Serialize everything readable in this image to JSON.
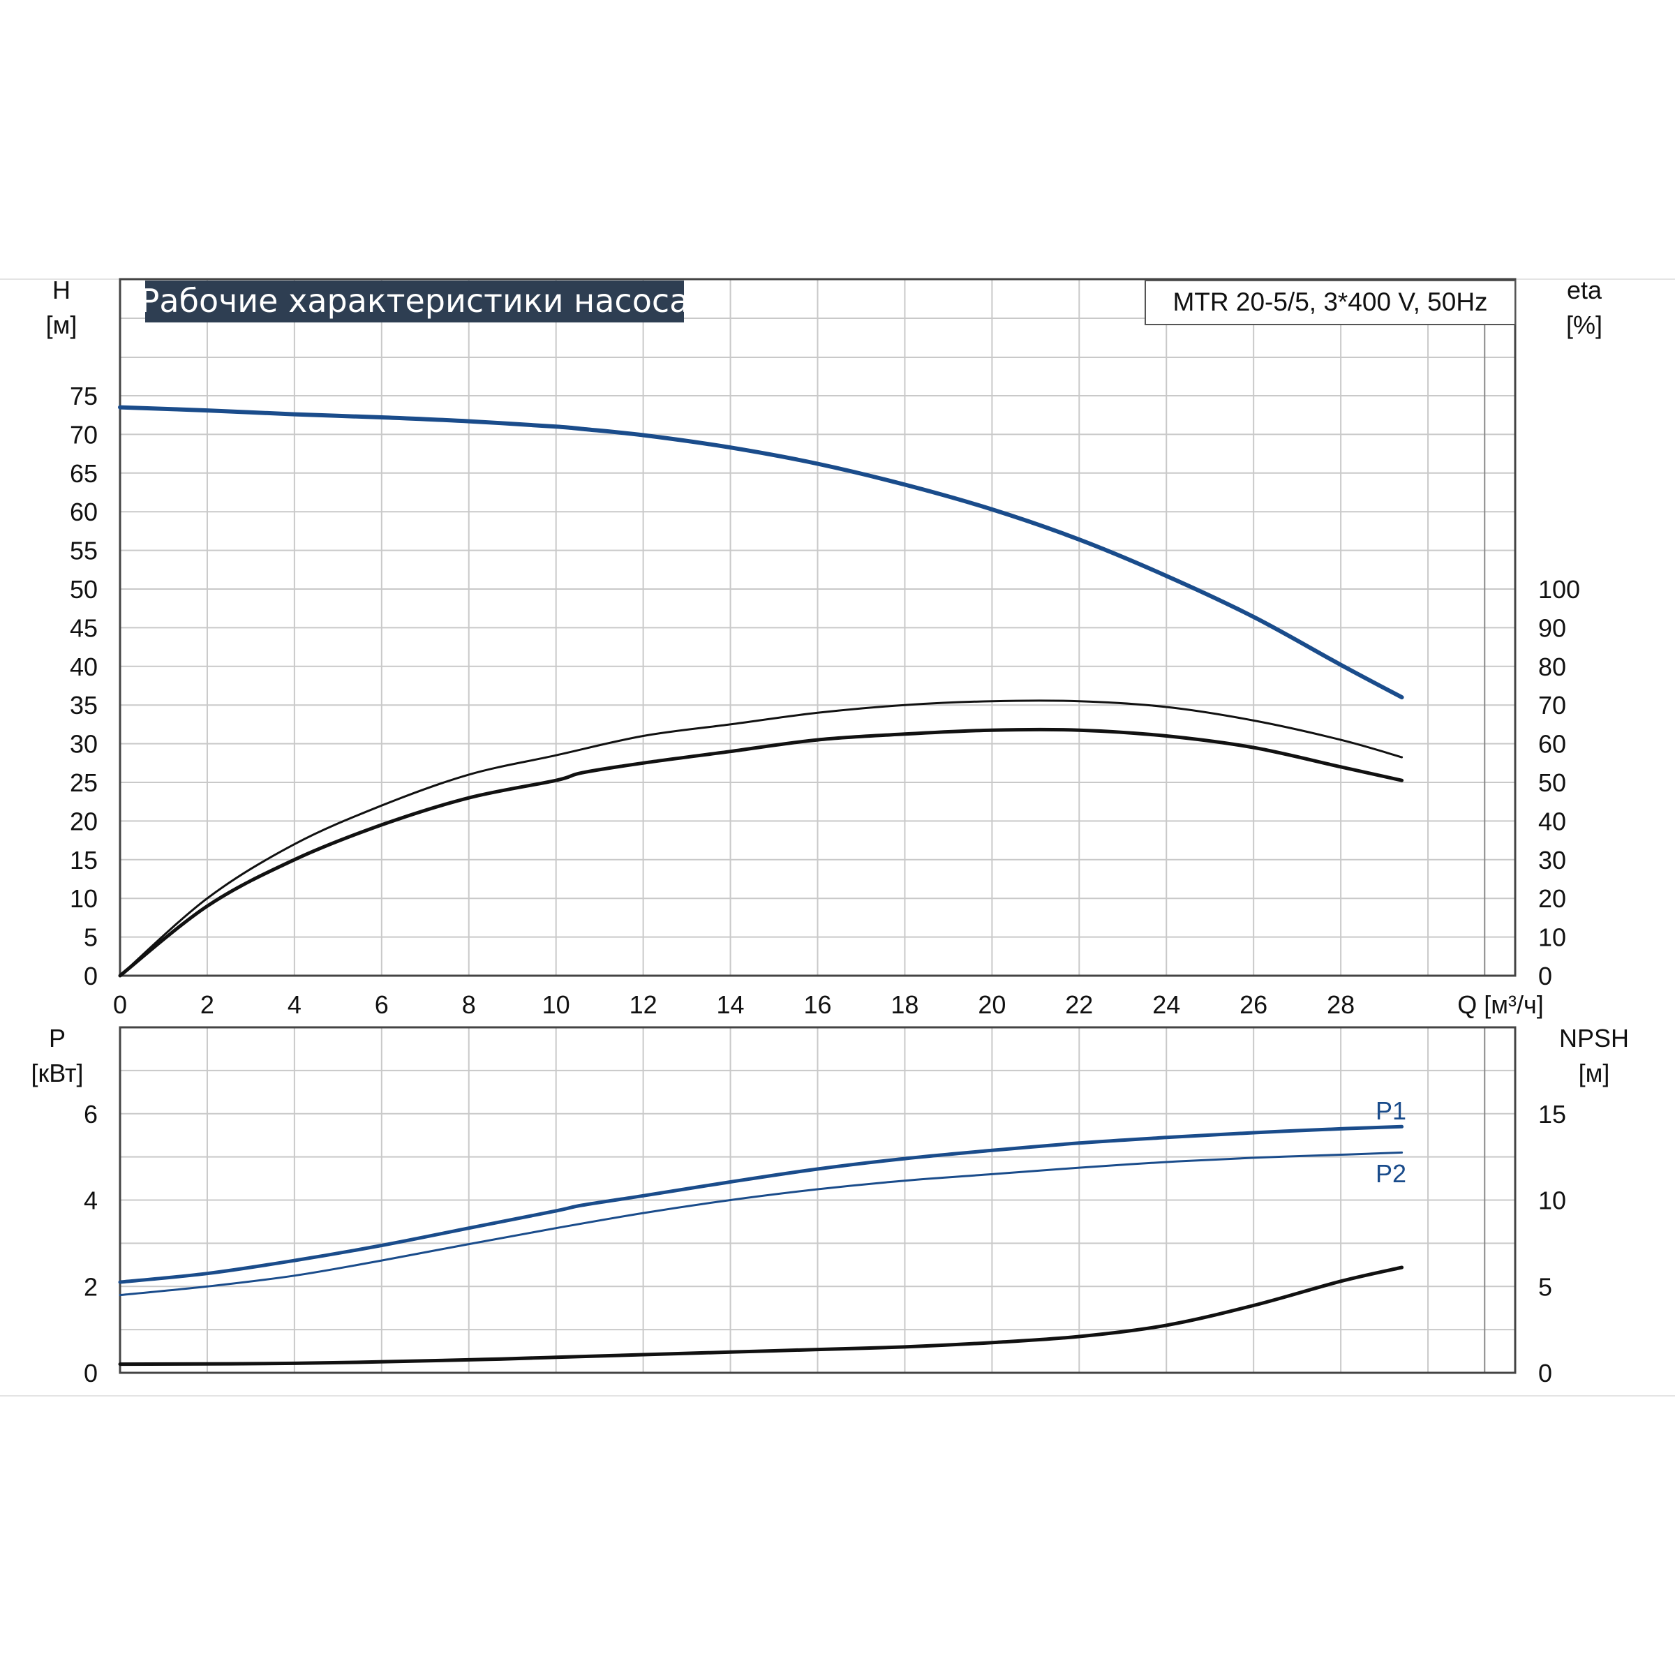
{
  "title": "Рабочие характеристики насоса",
  "model": "MTR 20-5/5, 3*400 V, 50Hz",
  "colors": {
    "blue": "#1a4c8b",
    "black": "#111111",
    "grid": "#c9c9c9",
    "title_bg": "#2e3e52"
  },
  "chart_data": [
    {
      "type": "line",
      "name": "head-efficiency",
      "xlabel": "Q [м³/ч]",
      "xlim": [
        0,
        32
      ],
      "x_ticks": [
        "0",
        "2",
        "4",
        "6",
        "8",
        "10",
        "12",
        "14",
        "16",
        "18",
        "20",
        "22",
        "24",
        "26",
        "28"
      ],
      "ylabel": "H",
      "ylabel_unit": "[м]",
      "ylim": [
        0,
        75
      ],
      "y_ticks": [
        "0",
        "5",
        "10",
        "15",
        "20",
        "25",
        "30",
        "35",
        "40",
        "45",
        "50",
        "55",
        "60",
        "65",
        "70",
        "75"
      ],
      "y2label": "eta",
      "y2label_unit": "[%]",
      "y2lim": [
        0,
        100
      ],
      "y2_ticks": [
        "0",
        "10",
        "20",
        "30",
        "40",
        "50",
        "60",
        "70",
        "80",
        "90",
        "100"
      ],
      "grid": true,
      "series": [
        {
          "axis": "left",
          "color": "#1a4c8b",
          "x": [
            0,
            2,
            4,
            6,
            8,
            10,
            10.6,
            12,
            14,
            16,
            18,
            20,
            22,
            24,
            26,
            28,
            29.4
          ],
          "y": [
            73.5,
            73.1,
            72.6,
            72.2,
            71.7,
            71.0,
            70.7,
            69.9,
            68.3,
            66.2,
            63.5,
            60.3,
            56.4,
            51.7,
            46.4,
            40.2,
            36.0
          ]
        },
        {
          "axis": "right",
          "color": "#111111",
          "x": [
            0,
            2,
            4,
            6,
            8,
            10,
            12,
            14,
            16,
            18,
            20,
            22,
            24,
            26,
            28,
            29.4
          ],
          "y": [
            0,
            20,
            34,
            44,
            52,
            57,
            62,
            65,
            68,
            70,
            71,
            71,
            69.5,
            66,
            61,
            56.5
          ]
        },
        {
          "axis": "right",
          "color": "#111111",
          "x": [
            0,
            2,
            4,
            6,
            8,
            10,
            10.6,
            12,
            14,
            16,
            18,
            20,
            22,
            24,
            26,
            28,
            29.4
          ],
          "y": [
            0,
            18,
            30,
            39,
            46,
            50.5,
            52.5,
            55,
            58,
            61,
            62.5,
            63.5,
            63.5,
            62,
            59,
            54,
            50.5
          ]
        }
      ]
    },
    {
      "type": "line",
      "name": "power-npsh",
      "xlim": [
        0,
        32
      ],
      "ylabel": "P",
      "ylabel_unit": "[кВт]",
      "ylim": [
        0,
        8
      ],
      "y_ticks": [
        "0",
        "2",
        "4",
        "6"
      ],
      "y2label": "NPSH",
      "y2label_unit": "[м]",
      "y2lim": [
        0,
        20
      ],
      "y2_ticks": [
        "0",
        "5",
        "10",
        "15"
      ],
      "grid": true,
      "series": [
        {
          "name": "P1",
          "axis": "left",
          "color": "#1a4c8b",
          "x": [
            0,
            2,
            4,
            6,
            8,
            10,
            10.6,
            12,
            14,
            16,
            18,
            20,
            22,
            24,
            26,
            28,
            29.4
          ],
          "y": [
            2.1,
            2.3,
            2.6,
            2.95,
            3.35,
            3.75,
            3.88,
            4.1,
            4.42,
            4.72,
            4.96,
            5.15,
            5.32,
            5.45,
            5.56,
            5.65,
            5.7
          ]
        },
        {
          "name": "P2",
          "axis": "left",
          "color": "#1a4c8b",
          "x": [
            0,
            2,
            4,
            6,
            8,
            10,
            12,
            14,
            16,
            18,
            20,
            22,
            24,
            26,
            28,
            29.4
          ],
          "y": [
            1.8,
            2.0,
            2.25,
            2.6,
            2.98,
            3.35,
            3.7,
            4.0,
            4.25,
            4.45,
            4.6,
            4.75,
            4.88,
            4.98,
            5.05,
            5.1
          ]
        },
        {
          "axis": "right",
          "color": "#111111",
          "x": [
            0,
            4,
            8,
            10,
            12,
            14,
            16,
            18,
            20,
            22,
            24,
            26,
            28,
            29.4
          ],
          "y": [
            0.5,
            0.55,
            0.75,
            0.9,
            1.05,
            1.2,
            1.35,
            1.5,
            1.75,
            2.1,
            2.75,
            3.9,
            5.3,
            6.1
          ]
        }
      ]
    }
  ]
}
